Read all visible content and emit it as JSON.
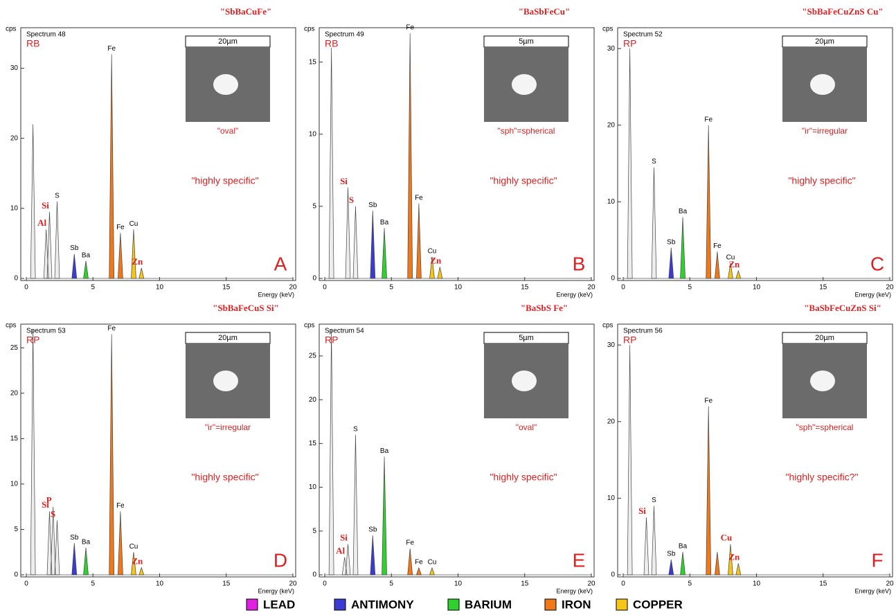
{
  "chart_data": [
    {
      "type": "spectrum",
      "title": "\"SbBaCuFe\"",
      "spectrum_label": "Spectrum 48",
      "detector": "RB",
      "inset_scale": "20µm",
      "inset_caption": "\"oval\"",
      "note": "\"highly specific\"",
      "panel_letter": "A",
      "y_label": "cps",
      "x_label": "Energy (keV)",
      "xlim": [
        0,
        20
      ],
      "xticks": [
        0,
        5,
        10,
        15,
        20
      ],
      "ylim": [
        0,
        35
      ],
      "yticks": [
        0,
        10,
        20,
        30
      ],
      "peaks": {
        "x": [
          0.5,
          1.49,
          1.74,
          2.31,
          3.6,
          4.47,
          6.4,
          7.06,
          8.05,
          8.64
        ],
        "values": [
          22,
          7,
          9.5,
          11,
          3.5,
          2.5,
          32,
          6.5,
          7,
          1.5
        ],
        "labels": [
          null,
          "Al",
          "Si",
          "S",
          "Sb",
          "Ba",
          "Fe",
          "Fe",
          "Cu",
          "Zn"
        ],
        "colors": [
          "#888888",
          "#888888",
          "#888888",
          "#888888",
          "#3b3bd1",
          "#2ed12e",
          "#f07818",
          "#f07818",
          "#f5c518",
          "#f5c518"
        ],
        "label_colors": [
          "#000000",
          "#e02020",
          "#e02020",
          "#000000",
          "#000000",
          "#000000",
          "#000000",
          "#000000",
          "#000000",
          "#e02020"
        ]
      }
    },
    {
      "type": "spectrum",
      "title": "\"BaSbFeCu\"",
      "spectrum_label": "Spectrum 49",
      "detector": "RB",
      "inset_scale": "5µm",
      "inset_caption": "\"sph\"=spherical",
      "note": "\"highly specific\"",
      "panel_letter": "B",
      "y_label": "cps",
      "x_label": "Energy (keV)",
      "xlim": [
        0,
        20
      ],
      "xticks": [
        0,
        5,
        10,
        15,
        20
      ],
      "ylim": [
        0,
        17
      ],
      "yticks": [
        0,
        5,
        10,
        15
      ],
      "peaks": {
        "x": [
          0.5,
          1.74,
          2.31,
          3.6,
          4.47,
          6.4,
          7.06,
          8.05,
          8.64
        ],
        "values": [
          16,
          6.3,
          5,
          4.7,
          3.5,
          17,
          5.2,
          1.5,
          0.8
        ],
        "labels": [
          null,
          "Si",
          "S",
          "Sb",
          "Ba",
          "Fe",
          "Fe",
          "Cu",
          "Zn"
        ],
        "colors": [
          "#888888",
          "#888888",
          "#888888",
          "#3b3bd1",
          "#2ed12e",
          "#f07818",
          "#f07818",
          "#f5c518",
          "#f5c518"
        ],
        "label_colors": [
          "#000000",
          "#e02020",
          "#e02020",
          "#000000",
          "#000000",
          "#000000",
          "#000000",
          "#000000",
          "#e02020"
        ]
      }
    },
    {
      "type": "spectrum",
      "title": "\"SbBaFeCuZnS Cu\"",
      "spectrum_label": "Spectrum 52",
      "detector": "RP",
      "inset_scale": "20µm",
      "inset_caption": "\"ir\"=irregular",
      "note": "\"highly specific\"",
      "panel_letter": "C",
      "y_label": "cps",
      "x_label": "Energy (keV)",
      "xlim": [
        0,
        20
      ],
      "xticks": [
        0,
        5,
        10,
        15,
        20
      ],
      "ylim": [
        0,
        32
      ],
      "yticks": [
        0,
        10,
        20,
        30
      ],
      "peaks": {
        "x": [
          0.5,
          2.31,
          3.6,
          4.47,
          6.4,
          7.06,
          8.05,
          8.64
        ],
        "values": [
          30,
          14.5,
          4,
          8,
          20,
          3.5,
          2,
          1
        ],
        "labels": [
          null,
          "S",
          "Sb",
          "Ba",
          "Fe",
          "Fe",
          "Cu",
          "Zn"
        ],
        "colors": [
          "#888888",
          "#888888",
          "#3b3bd1",
          "#2ed12e",
          "#f07818",
          "#f07818",
          "#f5c518",
          "#f5c518"
        ],
        "label_colors": [
          "#000000",
          "#000000",
          "#000000",
          "#000000",
          "#000000",
          "#000000",
          "#000000",
          "#e02020"
        ]
      }
    },
    {
      "type": "spectrum",
      "title": "\"SbBaFeCuS Si\"",
      "spectrum_label": "Spectrum 53",
      "detector": "RP",
      "inset_scale": "20µm",
      "inset_caption": "\"ir\"=irregular",
      "note": "\"highly specific\"",
      "panel_letter": "D",
      "y_label": "cps",
      "x_label": "Energy (keV)",
      "xlim": [
        0,
        20
      ],
      "xticks": [
        0,
        5,
        10,
        15,
        20
      ],
      "ylim": [
        0,
        27
      ],
      "yticks": [
        0,
        5,
        10,
        15,
        20,
        25
      ],
      "peaks": {
        "x": [
          0.5,
          1.74,
          2.01,
          2.31,
          3.6,
          4.47,
          6.4,
          7.06,
          8.05,
          8.64
        ],
        "values": [
          27,
          7,
          7.5,
          6,
          3.5,
          3,
          26.5,
          7,
          2.5,
          0.8
        ],
        "labels": [
          null,
          "Si",
          "P",
          "S",
          "Sb",
          "Ba",
          "Fe",
          "Fe",
          "Cu",
          "Zn"
        ],
        "colors": [
          "#888888",
          "#888888",
          "#888888",
          "#888888",
          "#3b3bd1",
          "#2ed12e",
          "#f07818",
          "#f07818",
          "#f5c518",
          "#f5c518"
        ],
        "label_colors": [
          "#000000",
          "#e02020",
          "#e02020",
          "#e02020",
          "#000000",
          "#000000",
          "#000000",
          "#000000",
          "#000000",
          "#e02020"
        ]
      }
    },
    {
      "type": "spectrum",
      "title": "\"BaSbS Fe\"",
      "spectrum_label": "Spectrum 54",
      "detector": "RP",
      "inset_scale": "5µm",
      "inset_caption": "\"oval\"",
      "note": "\"highly specific\"",
      "panel_letter": "E",
      "y_label": "cps",
      "x_label": "Energy (keV)",
      "xlim": [
        0,
        20
      ],
      "xticks": [
        0,
        5,
        10,
        15,
        20
      ],
      "ylim": [
        0,
        28
      ],
      "yticks": [
        0,
        5,
        10,
        15,
        20,
        25
      ],
      "peaks": {
        "x": [
          0.5,
          1.49,
          1.74,
          2.31,
          3.6,
          4.47,
          6.4,
          7.06,
          8.05
        ],
        "values": [
          28,
          2,
          3.5,
          16,
          4.5,
          13.5,
          3,
          0.8,
          0.8
        ],
        "labels": [
          null,
          "Al",
          "Si",
          "S",
          "Sb",
          "Ba",
          "Fe",
          "Fe",
          "Cu"
        ],
        "colors": [
          "#888888",
          "#888888",
          "#888888",
          "#888888",
          "#3b3bd1",
          "#2ed12e",
          "#f07818",
          "#f07818",
          "#f5c518"
        ],
        "label_colors": [
          "#000000",
          "#e02020",
          "#e02020",
          "#000000",
          "#000000",
          "#000000",
          "#000000",
          "#000000",
          "#000000"
        ]
      }
    },
    {
      "type": "spectrum",
      "title": "\"BaSbFeCuZnS Si\"",
      "spectrum_label": "Spectrum 56",
      "detector": "RP",
      "inset_scale": "20µm",
      "inset_caption": "\"sph\"=spherical",
      "note": "\"highly specific?\"",
      "panel_letter": "F",
      "y_label": "cps",
      "x_label": "Energy (keV)",
      "xlim": [
        0,
        20
      ],
      "xticks": [
        0,
        5,
        10,
        15,
        20
      ],
      "ylim": [
        0,
        32
      ],
      "yticks": [
        0,
        10,
        20,
        30
      ],
      "peaks": {
        "x": [
          0.5,
          1.74,
          2.31,
          3.6,
          4.47,
          6.4,
          7.06,
          8.05,
          8.64
        ],
        "values": [
          30,
          7.5,
          9,
          2,
          3,
          22,
          3,
          4,
          1.5
        ],
        "labels": [
          null,
          "Si",
          "S",
          "Sb",
          "Ba",
          "Fe",
          null,
          "Cu",
          "Zn"
        ],
        "colors": [
          "#888888",
          "#888888",
          "#888888",
          "#3b3bd1",
          "#2ed12e",
          "#f07818",
          "#f07818",
          "#f5c518",
          "#f5c518"
        ],
        "label_colors": [
          "#000000",
          "#e02020",
          "#000000",
          "#000000",
          "#000000",
          "#000000",
          "#000000",
          "#e02020",
          "#e02020"
        ]
      }
    }
  ],
  "legend": {
    "names": [
      "LEAD",
      "ANTIMONY",
      "BARIUM",
      "IRON",
      "COPPER"
    ],
    "colors": [
      "#e020e0",
      "#3b3bd1",
      "#2ed12e",
      "#f07818",
      "#f5c518"
    ]
  }
}
